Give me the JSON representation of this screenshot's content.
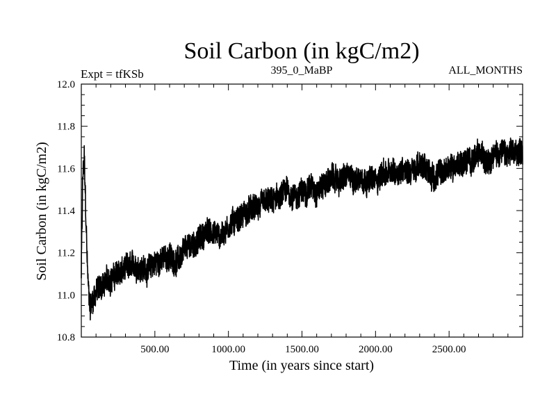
{
  "chart_data": {
    "type": "line",
    "title": "Soil Carbon (in kgC/m2)",
    "subtitle_left": "Expt = tfKSb",
    "subtitle_center": "395_0_MaBP",
    "subtitle_right": "ALL_MONTHS",
    "xlabel": "Time (in years since start)",
    "ylabel": "Soil Carbon (in kgC/m2)",
    "xlim": [
      0,
      3000
    ],
    "ylim": [
      10.8,
      12.0
    ],
    "xticks": [
      500,
      1000,
      1500,
      2000,
      2500
    ],
    "xtick_labels": [
      "500.00",
      "1000.00",
      "1500.00",
      "2000.00",
      "2500.00"
    ],
    "yticks": [
      10.8,
      11.0,
      11.2,
      11.4,
      11.6,
      11.8,
      12.0
    ],
    "ytick_labels": [
      "10.8",
      "11.0",
      "11.2",
      "11.4",
      "11.6",
      "11.8",
      "12.0"
    ],
    "grid": false,
    "series": [
      {
        "name": "Soil Carbon",
        "color": "#000000",
        "x": [
          0,
          10,
          20,
          30,
          40,
          50,
          60,
          80,
          100,
          150,
          200,
          250,
          300,
          350,
          400,
          450,
          500,
          550,
          600,
          650,
          700,
          750,
          800,
          850,
          900,
          950,
          1000,
          1050,
          1100,
          1150,
          1200,
          1250,
          1300,
          1350,
          1400,
          1450,
          1500,
          1550,
          1600,
          1650,
          1700,
          1750,
          1800,
          1850,
          1900,
          1950,
          2000,
          2050,
          2100,
          2150,
          2200,
          2250,
          2300,
          2350,
          2400,
          2450,
          2500,
          2550,
          2600,
          2650,
          2700,
          2750,
          2800,
          2850,
          2900,
          2950,
          3000
        ],
        "values": [
          11.1,
          11.55,
          11.65,
          11.4,
          11.15,
          11.0,
          10.95,
          10.98,
          11.02,
          11.05,
          11.08,
          11.1,
          11.12,
          11.13,
          11.14,
          11.12,
          11.15,
          11.17,
          11.18,
          11.16,
          11.2,
          11.24,
          11.26,
          11.3,
          11.3,
          11.28,
          11.33,
          11.36,
          11.38,
          11.4,
          11.41,
          11.43,
          11.44,
          11.46,
          11.49,
          11.47,
          11.48,
          11.52,
          11.5,
          11.53,
          11.55,
          11.54,
          11.56,
          11.55,
          11.56,
          11.55,
          11.54,
          11.58,
          11.57,
          11.59,
          11.6,
          11.59,
          11.61,
          11.6,
          11.56,
          11.58,
          11.6,
          11.62,
          11.63,
          11.64,
          11.66,
          11.65,
          11.67,
          11.68,
          11.66,
          11.67,
          11.69
        ],
        "band_halfwidth": 0.06
      }
    ]
  }
}
